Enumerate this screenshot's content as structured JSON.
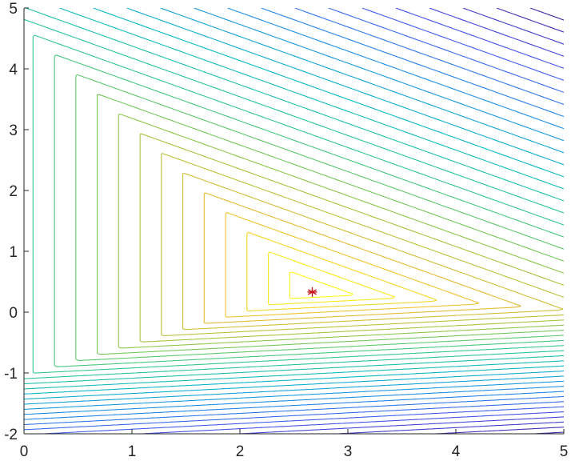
{
  "chart_data": {
    "type": "contour",
    "title": "",
    "xlabel": "",
    "ylabel": "",
    "xlim": [
      0,
      5
    ],
    "ylim": [
      -2,
      5
    ],
    "xticks": [
      "0",
      "1",
      "2",
      "3",
      "4",
      "5"
    ],
    "yticks": [
      "-2",
      "-1",
      "0",
      "1",
      "2",
      "3",
      "4",
      "5"
    ],
    "grid": false,
    "legend": "none",
    "colormap": "parula",
    "contour_level_count": 30,
    "minimum_marker": {
      "x": 2.67,
      "y": 0.33,
      "symbol": "*",
      "color": "#c8161d"
    }
  }
}
